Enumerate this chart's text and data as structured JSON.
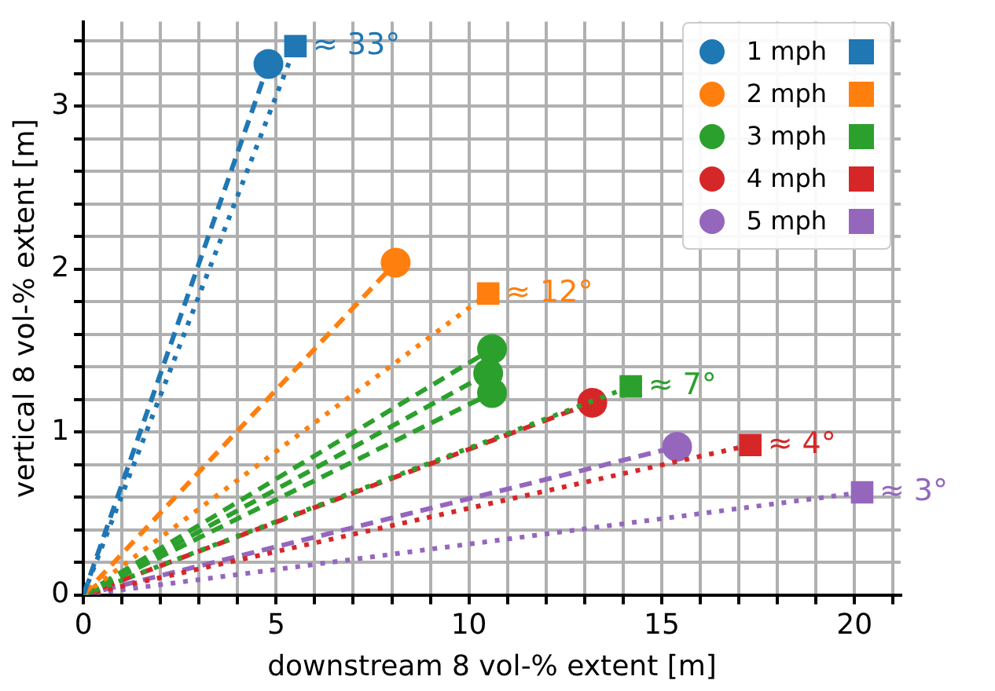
{
  "chart_data": {
    "type": "line",
    "xlabel": "downstream 8 vol-% extent [m]",
    "ylabel": "vertical 8 vol-% extent [m]",
    "xlim": [
      0,
      21.2
    ],
    "ylim": [
      0,
      3.52
    ],
    "xticks": [
      0,
      {
        "value": 1,
        "label": null
      },
      {
        "value": 2,
        "label": null
      },
      {
        "value": 3,
        "label": null
      },
      {
        "value": 4,
        "label": null
      },
      5,
      {
        "value": 6,
        "label": null
      },
      {
        "value": 7,
        "label": null
      },
      {
        "value": 8,
        "label": null
      },
      {
        "value": 9,
        "label": null
      },
      10,
      {
        "value": 11,
        "label": null
      },
      {
        "value": 12,
        "label": null
      },
      {
        "value": 13,
        "label": null
      },
      {
        "value": 14,
        "label": null
      },
      15,
      {
        "value": 16,
        "label": null
      },
      {
        "value": 17,
        "label": null
      },
      {
        "value": 18,
        "label": null
      },
      {
        "value": 19,
        "label": null
      },
      20,
      {
        "value": 21,
        "label": null
      }
    ],
    "yticks": [
      0,
      {
        "value": 0.2,
        "label": null
      },
      {
        "value": 0.4,
        "label": null
      },
      {
        "value": 0.6,
        "label": null
      },
      {
        "value": 0.8,
        "label": null
      },
      1,
      {
        "value": 1.2,
        "label": null
      },
      {
        "value": 1.4,
        "label": null
      },
      {
        "value": 1.6,
        "label": null
      },
      {
        "value": 1.8,
        "label": null
      },
      2,
      {
        "value": 2.2,
        "label": null
      },
      {
        "value": 2.4,
        "label": null
      },
      {
        "value": 2.6,
        "label": null
      },
      {
        "value": 2.8,
        "label": null
      },
      3,
      {
        "value": 3.2,
        "label": null
      },
      {
        "value": 3.4,
        "label": null
      }
    ],
    "grid": true,
    "legend": "top right",
    "series": [
      {
        "name": "1 mph",
        "color": "#1f77b4",
        "marker": "circle",
        "line_style": "dashed",
        "x": [
          0,
          4.8
        ],
        "values": [
          0,
          3.26
        ]
      },
      {
        "color": "#1f77b4",
        "marker": "square",
        "line_style": "dotted",
        "x": [
          0,
          5.5
        ],
        "values": [
          0,
          3.37
        ]
      },
      {
        "name": "2 mph",
        "color": "#ff7f0e",
        "marker": "circle",
        "line_style": "dashed",
        "x": [
          0,
          8.1
        ],
        "values": [
          0,
          2.04
        ]
      },
      {
        "color": "#ff7f0e",
        "marker": "square",
        "line_style": "dotted",
        "x": [
          0,
          10.5
        ],
        "values": [
          0,
          1.85
        ]
      },
      {
        "name": "3 mph",
        "color": "#2ca02c",
        "marker": "circle",
        "line_style": "dashed",
        "x": [
          0,
          10.6
        ],
        "values": [
          0,
          1.51
        ]
      },
      {
        "color": "#2ca02c",
        "marker": "circle",
        "line_style": "dashed",
        "x": [
          0,
          10.5
        ],
        "values": [
          0,
          1.36
        ]
      },
      {
        "color": "#2ca02c",
        "marker": "circle",
        "line_style": "dashed",
        "x": [
          0,
          10.6
        ],
        "values": [
          0,
          1.24
        ]
      },
      {
        "color": "#2ca02c",
        "marker": "square",
        "line_style": "dotted",
        "x": [
          0,
          14.2
        ],
        "values": [
          0,
          1.28
        ]
      },
      {
        "name": "4 mph",
        "color": "#d62728",
        "marker": "circle",
        "line_style": "dashed",
        "x": [
          0,
          13.2
        ],
        "values": [
          0,
          1.18
        ]
      },
      {
        "color": "#d62728",
        "marker": "square",
        "line_style": "dotted",
        "x": [
          0,
          17.3
        ],
        "values": [
          0,
          0.92
        ]
      },
      {
        "name": "5 mph",
        "color": "#9467bd",
        "marker": "circle",
        "line_style": "dashed",
        "x": [
          0,
          15.4
        ],
        "values": [
          0,
          0.91
        ]
      },
      {
        "color": "#9467bd",
        "marker": "square",
        "line_style": "dotted",
        "x": [
          0,
          20.2
        ],
        "values": [
          0,
          0.63
        ]
      }
    ],
    "annotations": [
      {
        "text": "≈ 33°",
        "x": 5.5,
        "y": 3.37
      },
      {
        "text": "≈ 12°",
        "x": 10.5,
        "y": 1.85
      },
      {
        "text": "≈ 7°",
        "x": 14.2,
        "y": 1.28
      },
      {
        "text": "≈ 4°",
        "x": 17.3,
        "y": 0.92
      },
      {
        "text": "≈ 3°",
        "x": 20.2,
        "y": 0.63
      }
    ]
  }
}
